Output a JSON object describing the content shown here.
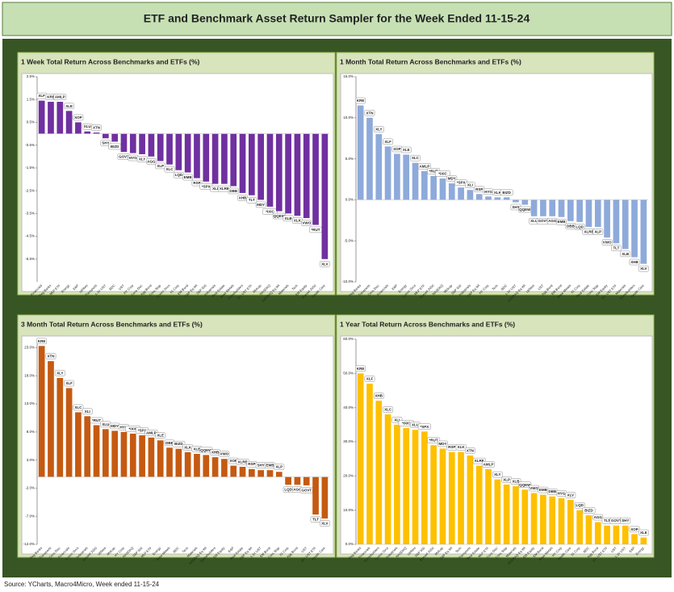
{
  "title": "ETF and Benchmark Asset Return Sampler for the Week Ended 11-15-24",
  "source": "Source: YCharts, Macro4Micro, Week ended 11-15-24",
  "chart_data": [
    {
      "type": "bar",
      "title": "1 Week Total Return Across Benchmarks and ETFs (%)",
      "color": "#7030a0",
      "categories": [
        "Financials",
        "Reg Banks",
        "MLP ETF",
        "Energy",
        "E&P",
        "Utilities",
        "Transports",
        "1-3Y UST",
        "BDC",
        "UST",
        "HY Corp",
        "Cons Disc",
        "Agg Bond",
        "Cons Stap",
        "Comm Svcs",
        "IG Corp",
        "EM Bond",
        "S&P Eq Wt",
        "S&P 500",
        "Industrials",
        "Real Estate",
        "Base Metals",
        "Homebuilders",
        "20+ UST ETF",
        "Midcap",
        "NASDAQ",
        "NASDAQ Eq Wt",
        "Materials",
        "Tech",
        "EM Equity",
        "Russell 2000",
        "Health Care"
      ],
      "labels": [
        "XLF",
        "KRE",
        "AMLP",
        "XLE",
        "XOP",
        "XLU",
        "XTN",
        "SHY",
        "BIZD",
        "GOVT",
        "HYG",
        "XLY",
        "AGG",
        "XLP",
        "XLC",
        "LQD",
        "EMB",
        "RSP",
        "*SPX",
        "XLI",
        "XLRE",
        "DBB",
        "XHB",
        "TLT",
        "MDY",
        "*IXIC",
        "QQEW",
        "XLB",
        "XLK",
        "VWO",
        "*RUT",
        "XLV"
      ],
      "values": [
        1.45,
        1.4,
        1.4,
        1.0,
        0.5,
        0.1,
        0.05,
        -0.2,
        -0.35,
        -0.8,
        -0.85,
        -0.9,
        -1.0,
        -1.2,
        -1.35,
        -1.6,
        -1.7,
        -1.95,
        -2.1,
        -2.2,
        -2.2,
        -2.3,
        -2.6,
        -2.7,
        -2.9,
        -3.2,
        -3.4,
        -3.5,
        -3.6,
        -3.7,
        -4.0,
        -5.5
      ],
      "ylim": [
        -6.5,
        2.5
      ],
      "yticks": [
        {
          "value": 2.5,
          "label": "2.5%"
        },
        {
          "value": 1.5,
          "label": "1.5%"
        },
        {
          "value": 0.5,
          "label": "0.5%"
        },
        {
          "value": -0.5,
          "label": "-0.5%"
        },
        {
          "value": -1.5,
          "label": "-1.5%"
        },
        {
          "value": -2.5,
          "label": "-2.5%"
        },
        {
          "value": -3.5,
          "label": "-3.5%"
        },
        {
          "value": -4.5,
          "label": "-4.5%"
        },
        {
          "value": -5.5,
          "label": "-5.5%"
        }
      ]
    },
    {
      "type": "bar",
      "title": "1 Month Total Return Across Benchmarks and ETFs (%)",
      "color": "#8eaadb",
      "categories": [
        "Reg Banks",
        "Transports",
        "Cons Disc",
        "Financials",
        "E&P",
        "Energy",
        "Comm Svcs",
        "MLP ETF",
        "Russell 2000",
        "NASDAQ",
        "Midcap",
        "S&P 500",
        "Industrials",
        "S&P Eq Wt",
        "HY Corp",
        "Tech",
        "BDC",
        "1-3Y UST",
        "NASDAQ Eq Wt",
        "Utilities",
        "UST",
        "Agg Bond",
        "EM Bond",
        "Base Metals",
        "IG Corp",
        "Real Estate",
        "Cons Stap",
        "EM Equity",
        "20+ UST ETF",
        "Materials",
        "Homebuilders",
        "Health Care"
      ],
      "labels": [
        "KRE",
        "XTN",
        "XLY",
        "XLF",
        "XOP",
        "XLE",
        "XLC",
        "AMLP",
        "*RUT",
        "*IXIC",
        "MDY",
        "*SPX",
        "XLI",
        "RSP",
        "HYG",
        "XLK",
        "BIZD",
        "SHY",
        "QQEW",
        "XLU",
        "GOVT",
        "AGG",
        "EMB",
        "DBB",
        "LQD",
        "XLRE",
        "XLP",
        "VWO",
        "TLT",
        "XLB",
        "XHB",
        "XLV"
      ],
      "values": [
        11.5,
        10.0,
        8.0,
        6.5,
        5.6,
        5.5,
        4.5,
        3.5,
        2.9,
        2.6,
        2.0,
        1.5,
        1.2,
        0.7,
        0.4,
        0.3,
        0.3,
        -0.3,
        -0.6,
        -2.0,
        -2.0,
        -2.0,
        -2.1,
        -2.6,
        -2.7,
        -3.3,
        -3.3,
        -4.6,
        -5.3,
        -6.0,
        -7.0,
        -7.8
      ],
      "ylim": [
        -10,
        15
      ],
      "yticks": [
        {
          "value": 15,
          "label": "15.0%"
        },
        {
          "value": 10,
          "label": "10.0%"
        },
        {
          "value": 5,
          "label": "5.0%"
        },
        {
          "value": 0,
          "label": "0.0%"
        },
        {
          "value": -5,
          "label": "-5.0%"
        },
        {
          "value": -10,
          "label": "-10.0%"
        }
      ]
    },
    {
      "type": "bar",
      "title": "3 Month Total Return Across Benchmarks and ETFs (%)",
      "color": "#c55a11",
      "categories": [
        "Reg Banks",
        "Transports",
        "Cons Disc",
        "Financials",
        "Comm Svcs",
        "Industrials",
        "Russell 2000",
        "Utilities",
        "Midcap",
        "HY Corp",
        "NASDAQ",
        "S&P 500",
        "MLP ETF",
        "Energy",
        "Base Metals",
        "BDC",
        "Tech",
        "Materials",
        "NASDAQ Eq Wt",
        "Homebuilders",
        "EM Equity",
        "E&P",
        "Real Estate",
        "S&P Eq Wt",
        "1-3Y UST",
        "EM Bond",
        "Cons Stap",
        "IG Corp",
        "Agg Bond",
        "UST",
        "20+ UST ETF",
        "Health Care"
      ],
      "labels": [
        "KRE",
        "XTN",
        "XLY",
        "XLF",
        "XLC",
        "XLI",
        "*RUT",
        "XLU",
        "MDY",
        "HYG",
        "*IXIC",
        "*SPX",
        "AMLP",
        "XLE",
        "DBB",
        "BIZD",
        "XLK",
        "XLB",
        "QQEW",
        "XHB",
        "VWO",
        "XOP",
        "XLRE",
        "RSP",
        "SHY",
        "EMB",
        "XLP",
        "LQD",
        "AGG",
        "GOVT",
        "TLT",
        "XLV"
      ],
      "values": [
        23.3,
        20.6,
        17.6,
        15.8,
        11.5,
        10.8,
        9.2,
        8.5,
        8.2,
        8.0,
        7.7,
        7.4,
        7.0,
        6.5,
        5.2,
        5.0,
        4.4,
        4.1,
        3.9,
        3.5,
        3.2,
        2.0,
        1.8,
        1.4,
        1.2,
        1.2,
        0.9,
        -1.4,
        -1.4,
        -1.5,
        -6.7,
        -7.4
      ],
      "ylim": [
        -12,
        24.5
      ],
      "yticks": [
        {
          "value": 23,
          "label": "23.0%"
        },
        {
          "value": 18,
          "label": "18.0%"
        },
        {
          "value": 13,
          "label": "13.0%"
        },
        {
          "value": 8,
          "label": "8.0%"
        },
        {
          "value": 3,
          "label": "3.0%"
        },
        {
          "value": -2,
          "label": "-2.0%"
        },
        {
          "value": -7,
          "label": "-7.0%"
        },
        {
          "value": -12,
          "label": "-12.0%"
        }
      ]
    },
    {
      "type": "bar",
      "title": "1 Year Total Return Across Benchmarks and ETFs (%)",
      "color": "#ffc000",
      "categories": [
        "Reg Banks",
        "Financials",
        "Homebuilders",
        "Comm Svcs",
        "Industrials",
        "NASDAQ",
        "Utilities",
        "S&P 500",
        "Russell 2000",
        "Midcap",
        "S&P Eq Wt",
        "Tech",
        "Transports",
        "Real Estate",
        "MLP ETF",
        "Cons Disc",
        "Cons Stap",
        "Materials",
        "NASDAQ Eq Wt",
        "EM Equity",
        "EM Bond",
        "Base Metals",
        "HY Corp",
        "Health Care",
        "IG Corp",
        "BDC",
        "Agg Bond",
        "20+ UST ETF",
        "UST",
        "1-3Y UST",
        "E&P",
        "Energy"
      ],
      "labels": [
        "KRE",
        "XLF",
        "XHB",
        "XLC",
        "XLI",
        "*IXIC",
        "XLU",
        "*SPX",
        "*RUT",
        "MDY",
        "RSP",
        "XLK",
        "XTN",
        "XLRE",
        "AMLP",
        "XLY",
        "XLP",
        "XLB",
        "QQEW",
        "VWO",
        "EMB",
        "DBB",
        "HYG",
        "XLV",
        "LQD",
        "BIZD",
        "AGG",
        "TLT",
        "GOVT",
        "SHY",
        "XOP",
        "XLE"
      ],
      "values": [
        50,
        47,
        42,
        38,
        35,
        34,
        33.5,
        33,
        29,
        28,
        27,
        27,
        26,
        23,
        22,
        19,
        17.5,
        17,
        16,
        15,
        14.5,
        14,
        13.5,
        13,
        10,
        8.5,
        6.5,
        5.5,
        5.5,
        5.5,
        3,
        2
      ],
      "ylim": [
        0,
        60
      ],
      "yticks": [
        {
          "value": 60,
          "label": "60.0%"
        },
        {
          "value": 50,
          "label": "50.0%"
        },
        {
          "value": 40,
          "label": "40.0%"
        },
        {
          "value": 30,
          "label": "30.0%"
        },
        {
          "value": 20,
          "label": "20.0%"
        },
        {
          "value": 10,
          "label": "10.0%"
        },
        {
          "value": 0,
          "label": "0.0%"
        }
      ]
    }
  ]
}
